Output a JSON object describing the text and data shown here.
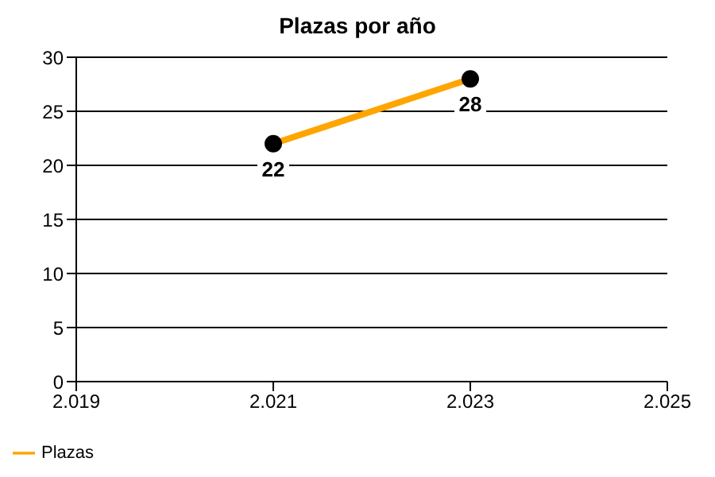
{
  "chart_data": {
    "type": "line",
    "title": "Plazas por año",
    "x": [
      2021,
      2023
    ],
    "series": [
      {
        "name": "Plazas",
        "color": "#ffa500",
        "values": [
          22,
          28
        ]
      }
    ],
    "xlim": [
      2019,
      2025
    ],
    "xticks": [
      {
        "value": 2019,
        "label": "2.019"
      },
      {
        "value": 2021,
        "label": "2.021"
      },
      {
        "value": 2023,
        "label": "2.023"
      },
      {
        "value": 2025,
        "label": "2.025"
      }
    ],
    "ylim": [
      0,
      30
    ],
    "yticks": [
      0,
      5,
      10,
      15,
      20,
      25,
      30
    ],
    "grid": "y",
    "legend": "bottom left",
    "marker": "circle",
    "line_style": "solid",
    "data_labels": true
  }
}
